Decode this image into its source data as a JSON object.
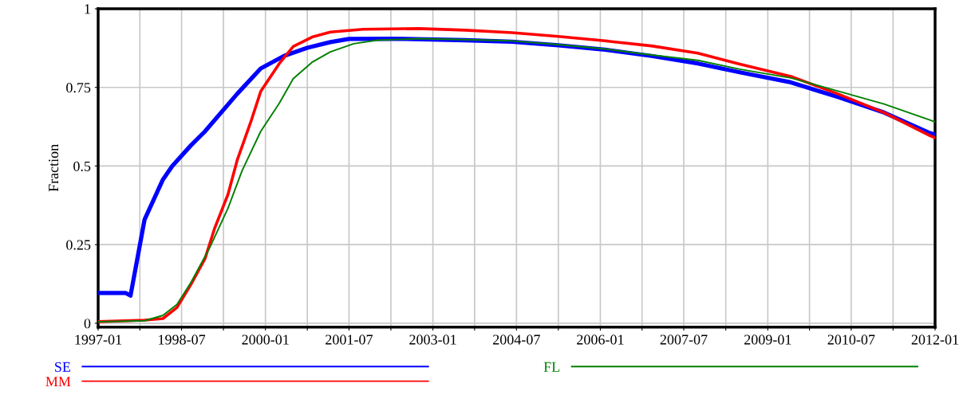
{
  "chart_data": {
    "type": "line",
    "ylabel": "Fraction",
    "xlim": [
      "1997-01",
      "2012-01"
    ],
    "ylim": [
      -0.0125,
      1
    ],
    "xticks": [
      "1997-01",
      {
        "value": "1997-10",
        "label": null
      },
      "1998-07",
      {
        "value": "1999-04",
        "label": null
      },
      "2000-01",
      {
        "value": "2000-10",
        "label": null
      },
      "2001-07",
      {
        "value": "2002-04",
        "label": null
      },
      "2003-01",
      {
        "value": "2003-10",
        "label": null
      },
      "2004-07",
      {
        "value": "2005-04",
        "label": null
      },
      "2006-01",
      {
        "value": "2006-10",
        "label": null
      },
      "2007-07",
      {
        "value": "2008-04",
        "label": null
      },
      "2009-01",
      {
        "value": "2009-10",
        "label": null
      },
      "2010-07",
      {
        "value": "2011-04",
        "label": null
      },
      "2012-01"
    ],
    "yticks": [
      0,
      0.25,
      0.5,
      0.75,
      1
    ],
    "grid": true,
    "legend": "bottom",
    "line_style": "solid",
    "series": [
      {
        "name": "SE",
        "color": "#0000ff",
        "x": [
          "1997-01",
          "1997-07",
          "1997-08",
          "1997-11",
          "1998-03",
          "1998-05",
          "1998-09",
          "1998-12",
          "1999-07",
          "1999-12",
          "2000-05",
          "2000-10",
          "2001-03",
          "2001-07",
          "2002-04",
          "2003-08",
          "2004-06",
          "2005-04",
          "2006-02",
          "2006-12",
          "2007-10",
          "2008-07",
          "2009-06",
          "2010-04",
          "2011-02",
          "2011-12",
          "2012-01"
        ],
        "values": [
          0.096,
          0.096,
          0.088,
          0.33,
          0.457,
          0.5,
          0.566,
          0.61,
          0.73,
          0.81,
          0.85,
          0.876,
          0.894,
          0.904,
          0.905,
          0.9,
          0.895,
          0.884,
          0.87,
          0.85,
          0.826,
          0.798,
          0.766,
          0.72,
          0.67,
          0.604,
          0.6
        ]
      },
      {
        "name": "MM",
        "color": "#ff0000",
        "x": [
          "1997-01",
          "1997-11",
          "1998-03",
          "1998-06",
          "1998-09",
          "1998-12",
          "1999-02",
          "1999-05",
          "1999-07",
          "1999-10",
          "1999-12",
          "2000-04",
          "2000-07",
          "2000-11",
          "2001-03",
          "2001-10",
          "2002-10",
          "2003-08",
          "2004-06",
          "2005-04",
          "2006-02",
          "2006-12",
          "2007-10",
          "2008-07",
          "2009-06",
          "2010-04",
          "2011-02",
          "2011-12",
          "2012-01"
        ],
        "values": [
          0.005,
          0.01,
          0.015,
          0.05,
          0.124,
          0.205,
          0.3,
          0.41,
          0.52,
          0.646,
          0.737,
          0.826,
          0.88,
          0.91,
          0.926,
          0.935,
          0.937,
          0.932,
          0.924,
          0.912,
          0.898,
          0.882,
          0.859,
          0.824,
          0.785,
          0.73,
          0.67,
          0.596,
          0.59
        ]
      },
      {
        "name": "FL",
        "color": "#008000",
        "x": [
          "1997-01",
          "1997-11",
          "1998-03",
          "1998-06",
          "1998-09",
          "1999-01",
          "1999-05",
          "1999-08",
          "1999-12",
          "2000-04",
          "2000-07",
          "2000-11",
          "2001-03",
          "2001-08",
          "2002-01",
          "2002-10",
          "2004-05",
          "2005-04",
          "2006-02",
          "2006-12",
          "2007-10",
          "2008-07",
          "2009-06",
          "2010-04",
          "2011-02",
          "2011-12",
          "2012-01"
        ],
        "values": [
          0.005,
          0.008,
          0.025,
          0.06,
          0.13,
          0.24,
          0.366,
          0.485,
          0.61,
          0.7,
          0.778,
          0.83,
          0.863,
          0.889,
          0.9,
          0.905,
          0.899,
          0.886,
          0.872,
          0.853,
          0.836,
          0.808,
          0.78,
          0.739,
          0.697,
          0.646,
          0.64
        ]
      }
    ]
  }
}
